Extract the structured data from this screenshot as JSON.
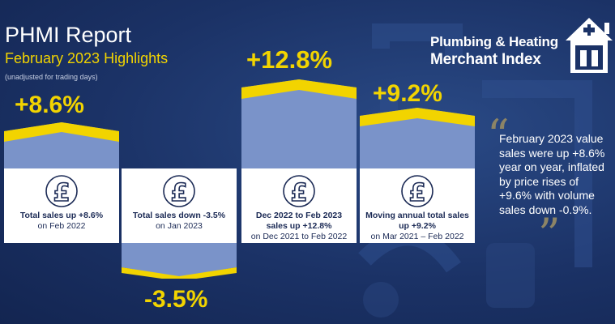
{
  "header": {
    "title": "PHMI Report",
    "subtitle": "February 2023 Highlights",
    "note": "(unadjusted for trading days)"
  },
  "logo": {
    "line1": "Plumbing & Heating",
    "line2": "Merchant Index"
  },
  "cards": [
    {
      "percent": "+8.6%",
      "value": 8.6,
      "line1": "Total sales up +8.6%",
      "line2": "on Feb 2022",
      "line3": ""
    },
    {
      "percent": "-3.5%",
      "value": -3.5,
      "line1": "Total sales down -3.5%",
      "line2": "on Jan 2023",
      "line3": ""
    },
    {
      "percent": "+12.8%",
      "value": 12.8,
      "line1": "Dec 2022 to Feb 2023",
      "line2": "sales up +12.8%",
      "line3": "on Dec 2021 to Feb 2022"
    },
    {
      "percent": "+9.2%",
      "value": 9.2,
      "line1": "Moving annual total sales",
      "line2": "up +9.2%",
      "line3": "on Mar 2021 – Feb 2022"
    }
  ],
  "quote": {
    "text": "February 2023 value sales were up +8.6% year on year, inflated by price rises of +9.6% with volume sales down -0.9%."
  },
  "colors": {
    "background": "#1b3266",
    "accent_yellow": "#f2d400",
    "bar_blue": "#7a93c9",
    "card_white": "#ffffff"
  },
  "icons": [
    "pound-sign-icon",
    "logo-house-tap-icon",
    "quote-open-icon",
    "quote-close-icon"
  ]
}
